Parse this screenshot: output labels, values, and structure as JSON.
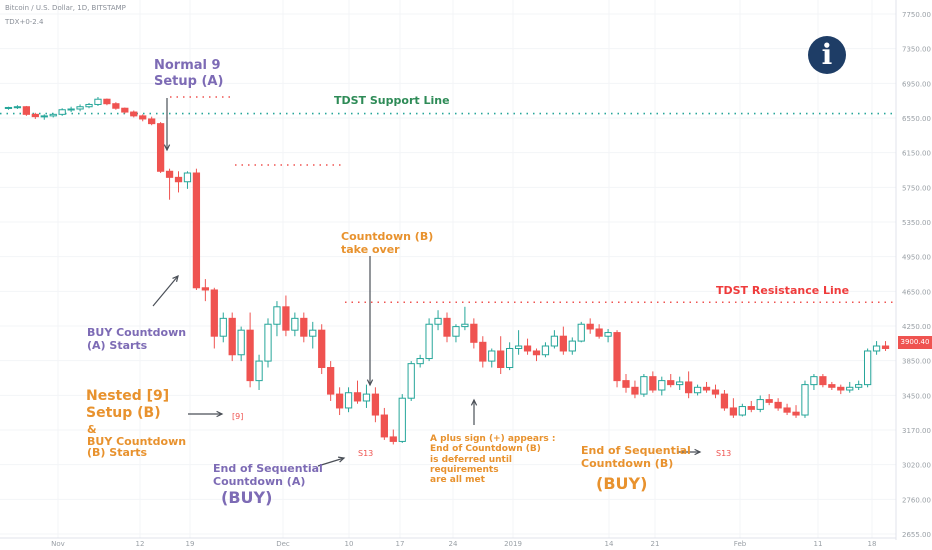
{
  "header": {
    "symbol_line": "Bitcoin / U.S. Dollar, 1D, BITSTAMP",
    "indicator_line": "TDX+0-2.4"
  },
  "info_icon_glyph": "i",
  "colors": {
    "up": "#26a69a",
    "down": "#ef5350",
    "purple": "#7d6bb5",
    "orange": "#e8922e",
    "green_line": "#26a69a",
    "red_line": "#ef5350",
    "axis_text": "#9aa0a6",
    "price_tag": "#ef5350"
  },
  "annotations": {
    "normal9": "Normal 9\nSetup (A)",
    "support": "TDST Support Line",
    "resistance": "TDST Resistance Line",
    "countdown_b": "Countdown (B)\ntake over",
    "buy_countdown_a": "BUY Countdown\n(A) Starts",
    "nested9": "Nested [9]\nSetup (B)",
    "buy_countdown_b": "&\nBUY Countdown\n(B) Starts",
    "end_seq_a": "End of Sequential\nCountdown (A)",
    "buy_a": "(BUY)",
    "plus_sign": "A plus sign (+) appears :\nEnd of Countdown (B)\nis deferred until\nrequirements\nare all met",
    "end_seq_b": "End of Sequential\nCountdown (B)",
    "buy_b": "(BUY)",
    "nine_bracket": "[9]",
    "s13_a": "S13",
    "s13_b": "S13"
  },
  "chart_data": {
    "type": "candlestick",
    "symbol": "Bitcoin / U.S. Dollar, 1D, BITSTAMP",
    "y_axis": {
      "scale": "log",
      "range": [
        2655,
        8000
      ],
      "tick_labels": [
        "7750.00",
        "7350.00",
        "6950.00",
        "6550.00",
        "6150.00",
        "5750.00",
        "5350.00",
        "4950.00",
        "4650.00",
        "4250.00",
        "3850.00",
        "3450.00",
        "3170.00",
        "3020.00",
        "2760.00",
        "2655.00"
      ]
    },
    "x_axis": {
      "tick_labels": [
        "Nov",
        "12",
        "19",
        "Dec",
        "10",
        "17",
        "24",
        "2019",
        "14",
        "21",
        "Feb",
        "11",
        "18"
      ]
    },
    "last_price": "3900.40",
    "tdst_support": 6330,
    "tdst_resistance": 4290,
    "candles": [
      [
        6400,
        6420,
        6380,
        6410
      ],
      [
        6410,
        6440,
        6390,
        6420
      ],
      [
        6420,
        6430,
        6300,
        6320
      ],
      [
        6320,
        6340,
        6260,
        6290
      ],
      [
        6290,
        6320,
        6250,
        6300
      ],
      [
        6300,
        6330,
        6280,
        6320
      ],
      [
        6320,
        6400,
        6300,
        6380
      ],
      [
        6380,
        6420,
        6350,
        6390
      ],
      [
        6390,
        6450,
        6360,
        6420
      ],
      [
        6420,
        6470,
        6400,
        6450
      ],
      [
        6450,
        6550,
        6430,
        6520
      ],
      [
        6520,
        6530,
        6440,
        6460
      ],
      [
        6460,
        6480,
        6380,
        6400
      ],
      [
        6400,
        6410,
        6330,
        6350
      ],
      [
        6350,
        6370,
        6280,
        6300
      ],
      [
        6300,
        6320,
        6230,
        6260
      ],
      [
        6260,
        6290,
        6180,
        6200
      ],
      [
        6200,
        6220,
        5600,
        5620
      ],
      [
        5620,
        5650,
        5300,
        5550
      ],
      [
        5550,
        5620,
        5380,
        5500
      ],
      [
        5500,
        5620,
        5420,
        5600
      ],
      [
        5600,
        5650,
        4400,
        4420
      ],
      [
        4420,
        4500,
        4300,
        4400
      ],
      [
        4400,
        4420,
        3900,
        4000
      ],
      [
        4000,
        4200,
        3950,
        4150
      ],
      [
        4150,
        4200,
        3800,
        3850
      ],
      [
        3850,
        4080,
        3800,
        4050
      ],
      [
        4050,
        4200,
        3600,
        3650
      ],
      [
        3650,
        3850,
        3580,
        3800
      ],
      [
        3800,
        4150,
        3750,
        4100
      ],
      [
        4100,
        4300,
        4000,
        4250
      ],
      [
        4250,
        4350,
        4000,
        4050
      ],
      [
        4050,
        4200,
        4000,
        4150
      ],
      [
        4150,
        4200,
        3950,
        4000
      ],
      [
        4000,
        4120,
        3900,
        4050
      ],
      [
        4050,
        4100,
        3700,
        3750
      ],
      [
        3750,
        3800,
        3500,
        3550
      ],
      [
        3550,
        3600,
        3400,
        3450
      ],
      [
        3450,
        3600,
        3420,
        3560
      ],
      [
        3560,
        3650,
        3480,
        3500
      ],
      [
        3500,
        3620,
        3450,
        3550
      ],
      [
        3550,
        3600,
        3350,
        3400
      ],
      [
        3400,
        3450,
        3230,
        3250
      ],
      [
        3250,
        3300,
        3200,
        3220
      ],
      [
        3220,
        3550,
        3210,
        3520
      ],
      [
        3520,
        3800,
        3500,
        3780
      ],
      [
        3780,
        3850,
        3750,
        3820
      ],
      [
        3820,
        4150,
        3800,
        4100
      ],
      [
        4100,
        4220,
        4050,
        4150
      ],
      [
        4150,
        4200,
        3950,
        4000
      ],
      [
        4000,
        4100,
        3950,
        4080
      ],
      [
        4080,
        4250,
        4050,
        4100
      ],
      [
        4100,
        4150,
        3900,
        3950
      ],
      [
        3950,
        4000,
        3750,
        3800
      ],
      [
        3800,
        3900,
        3750,
        3880
      ],
      [
        3880,
        4000,
        3700,
        3750
      ],
      [
        3750,
        3950,
        3730,
        3900
      ],
      [
        3900,
        4050,
        3850,
        3920
      ],
      [
        3920,
        3980,
        3850,
        3880
      ],
      [
        3880,
        3900,
        3800,
        3850
      ],
      [
        3850,
        3950,
        3830,
        3920
      ],
      [
        3920,
        4050,
        3900,
        4000
      ],
      [
        4000,
        4080,
        3850,
        3880
      ],
      [
        3880,
        3990,
        3850,
        3960
      ],
      [
        3960,
        4120,
        3950,
        4100
      ],
      [
        4100,
        4150,
        4020,
        4060
      ],
      [
        4060,
        4100,
        3980,
        4000
      ],
      [
        4000,
        4060,
        3950,
        4030
      ],
      [
        4030,
        4050,
        3600,
        3650
      ],
      [
        3650,
        3700,
        3560,
        3600
      ],
      [
        3600,
        3650,
        3520,
        3550
      ],
      [
        3550,
        3700,
        3530,
        3680
      ],
      [
        3680,
        3720,
        3560,
        3580
      ],
      [
        3580,
        3680,
        3540,
        3650
      ],
      [
        3650,
        3700,
        3600,
        3620
      ],
      [
        3620,
        3680,
        3580,
        3640
      ],
      [
        3640,
        3720,
        3520,
        3560
      ],
      [
        3560,
        3620,
        3540,
        3600
      ],
      [
        3600,
        3640,
        3560,
        3580
      ],
      [
        3580,
        3620,
        3520,
        3550
      ],
      [
        3550,
        3580,
        3430,
        3450
      ],
      [
        3450,
        3520,
        3380,
        3400
      ],
      [
        3400,
        3480,
        3390,
        3460
      ],
      [
        3460,
        3500,
        3420,
        3440
      ],
      [
        3440,
        3540,
        3420,
        3510
      ],
      [
        3510,
        3550,
        3470,
        3490
      ],
      [
        3490,
        3520,
        3430,
        3450
      ],
      [
        3450,
        3480,
        3400,
        3420
      ],
      [
        3420,
        3470,
        3380,
        3400
      ],
      [
        3400,
        3650,
        3380,
        3620
      ],
      [
        3620,
        3700,
        3580,
        3680
      ],
      [
        3680,
        3700,
        3600,
        3620
      ],
      [
        3620,
        3640,
        3580,
        3600
      ],
      [
        3600,
        3620,
        3550,
        3580
      ],
      [
        3580,
        3640,
        3560,
        3600
      ],
      [
        3600,
        3650,
        3580,
        3620
      ],
      [
        3620,
        3900,
        3600,
        3880
      ],
      [
        3880,
        3960,
        3850,
        3920
      ],
      [
        3920,
        3960,
        3880,
        3900
      ]
    ]
  }
}
